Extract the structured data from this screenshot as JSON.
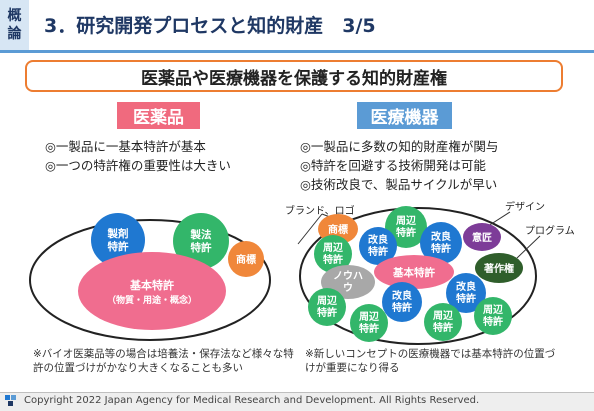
{
  "header": {
    "tag_line1": "概",
    "tag_line2": "論",
    "title": "3．研究開発プロセスと知的財産　3/5"
  },
  "banner": "医薬品や医療機器を保護する知的財産権",
  "colors": {
    "pharma_header": "#f06a7e",
    "device_header": "#5b9bd5",
    "accent_line": "#5b9bd5",
    "banner_border": "#ed7d31",
    "circle_blue": "#1f78d1",
    "circle_green": "#33b66a",
    "circle_orange": "#f0873a",
    "circle_pink": "#f06d8f",
    "circle_purple": "#7d3c98",
    "circle_dark_green": "#2f5e2b",
    "circle_gray": "#a8a8a8"
  },
  "left": {
    "heading": "医薬品",
    "bullets": [
      "◎一製品に一基本特許が基本",
      "◎一つの特許権の重要性は大きい"
    ],
    "circles": {
      "seizai": "製剤\n特許",
      "seihou": "製法\n特許",
      "shohyo": "商標",
      "kihon": "基本特許",
      "kihon_sub": "（物質・用途・概念）"
    },
    "note": "※バイオ医薬品等の場合は培養法・保存法など様々な特許の位置づけがかなり大きくなることも多い"
  },
  "right": {
    "heading": "医療機器",
    "bullets": [
      "◎一製品に多数の知的財産権が関与",
      "◎特許を回避する技術開発は可能",
      "◎技術改良で、製品サイクルが早い"
    ],
    "callout_brand": "ブランド、ロゴ",
    "callout_design": "デザイン",
    "callout_program": "プログラム",
    "circles": {
      "shohyo": "商標",
      "isho": "意匠",
      "chosakuken": "著作権",
      "nouhau": "ノウハウ",
      "kihon": "基本特許",
      "shuhen": "周辺\n特許",
      "kairyo": "改良\n特許"
    },
    "note": "※新しいコンセプトの医療機器では基本特許の位置づけが重要になり得る"
  },
  "footer": {
    "copyright": "Copyright 2022 Japan Agency for Medical Research and Development. All Rights Reserved."
  }
}
